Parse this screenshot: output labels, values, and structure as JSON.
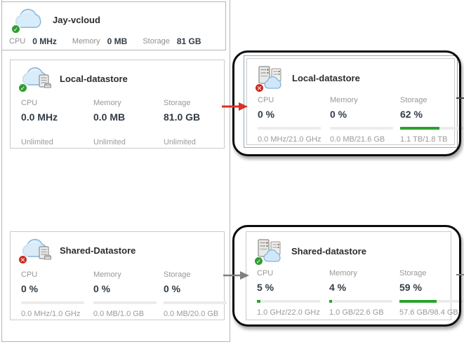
{
  "org": {
    "title": "Jay-vcloud",
    "status": "ok",
    "stats": [
      {
        "label": "CPU",
        "value": "0 MHz"
      },
      {
        "label": "Memory",
        "value": "0 MB"
      },
      {
        "label": "Storage",
        "value": "81 GB"
      }
    ]
  },
  "left": {
    "cards": [
      {
        "title": "Local-datastore",
        "status": "ok",
        "metrics": [
          {
            "label": "CPU",
            "value": "0.0 MHz",
            "sub": "Unlimited"
          },
          {
            "label": "Memory",
            "value": "0.0 MB",
            "sub": "Unlimited"
          },
          {
            "label": "Storage",
            "value": "81.0 GB",
            "sub": "Unlimited"
          }
        ]
      },
      {
        "title": "Shared-Datastore",
        "status": "error",
        "metrics": [
          {
            "label": "CPU",
            "value": "0 %",
            "percent": 0,
            "sub": "0.0 MHz/1.0 GHz"
          },
          {
            "label": "Memory",
            "value": "0 %",
            "percent": 0,
            "sub": "0.0 MB/1.0 GB"
          },
          {
            "label": "Storage",
            "value": "0 %",
            "percent": 0,
            "sub": "0.0 MB/20.0 GB"
          }
        ]
      }
    ]
  },
  "right": {
    "cards": [
      {
        "title": "Local-datastore",
        "status": "error",
        "selected": true,
        "metrics": [
          {
            "label": "CPU",
            "value": "0 %",
            "percent": 0,
            "sub": "0.0 MHz/21.0 GHz"
          },
          {
            "label": "Memory",
            "value": "0 %",
            "percent": 0,
            "sub": "0.0 MB/21.6 GB"
          },
          {
            "label": "Storage",
            "value": "62 %",
            "percent": 62,
            "sub": "1.1 TB/1.8 TB"
          }
        ]
      },
      {
        "title": "Shared-datastore",
        "status": "ok",
        "selected": false,
        "metrics": [
          {
            "label": "CPU",
            "value": "5 %",
            "percent": 5,
            "sub": "1.0 GHz/22.0 GHz"
          },
          {
            "label": "Memory",
            "value": "4 %",
            "percent": 4,
            "sub": "1.0 GB/22.6 GB"
          },
          {
            "label": "Storage",
            "value": "59 %",
            "percent": 59,
            "sub": "57.6 GB/98.4 GB"
          }
        ]
      }
    ]
  },
  "icons": {
    "ok": "✓",
    "error": "✕"
  },
  "colors": {
    "progress_green": "#2aa22c",
    "status_ok": "#2f9e2f",
    "status_error": "#cc2c20",
    "arrow_red": "#d93025",
    "arrow_gray": "#7f7f7f",
    "selection_border": "#8fa6c0",
    "annotation_black": "#0b0b0b"
  }
}
